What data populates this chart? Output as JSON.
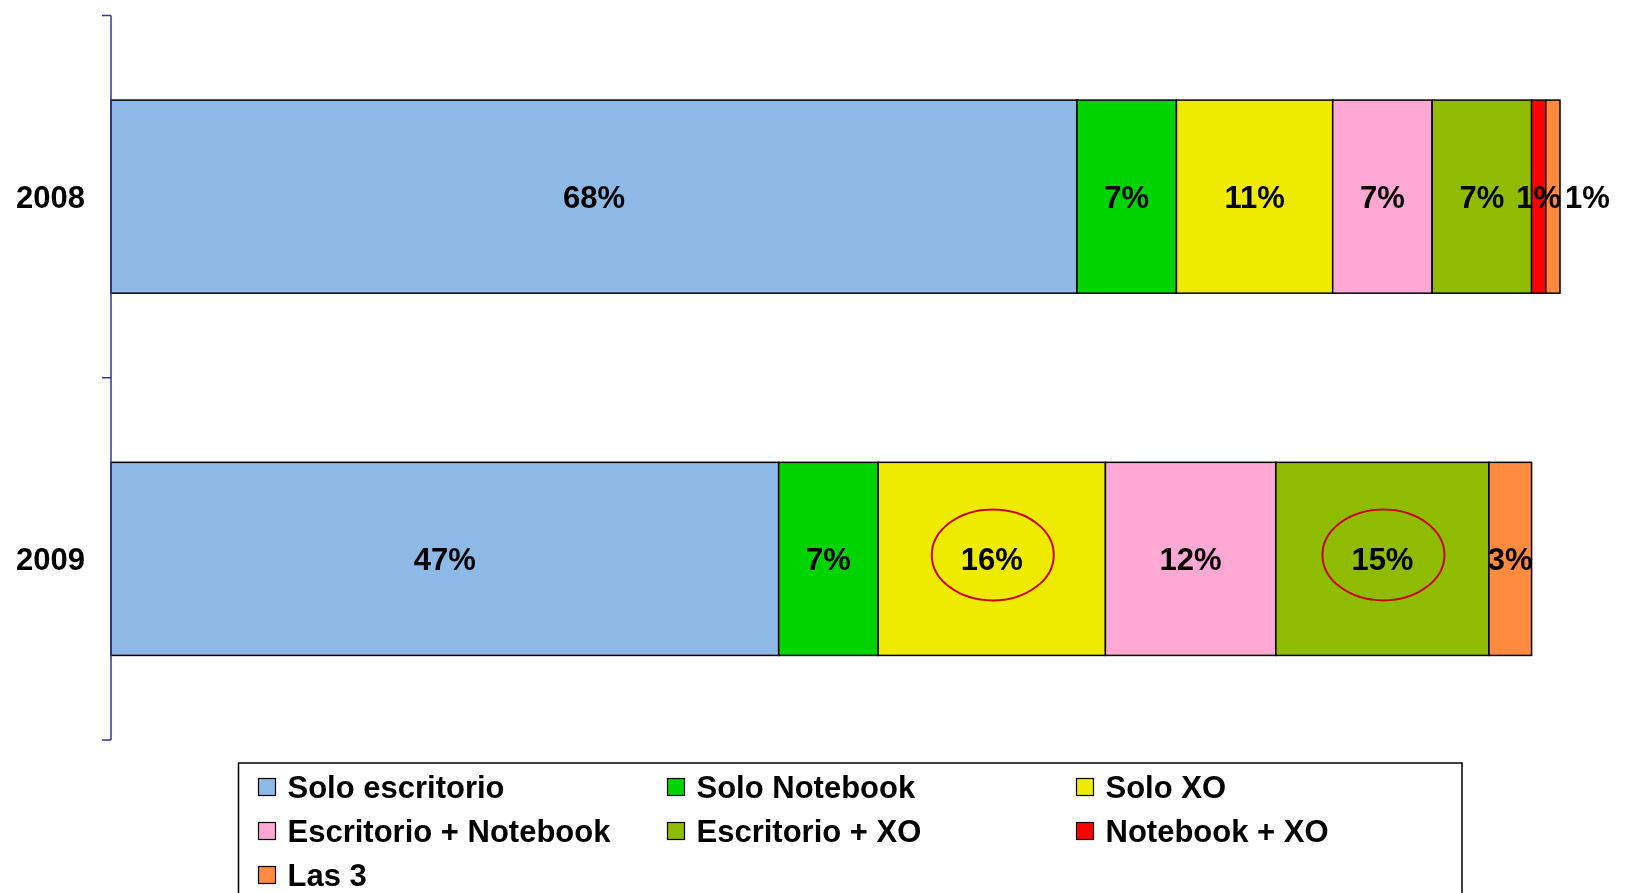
{
  "chart_data": {
    "type": "bar",
    "orientation": "horizontal",
    "stacked": true,
    "categories": [
      "2008",
      "2009"
    ],
    "xlim": [
      0,
      102
    ],
    "tick_labels": "y",
    "legend": "bottom",
    "series": [
      {
        "name": "Solo escritorio",
        "color": "#8cb9e6",
        "values": [
          68,
          47
        ],
        "value_labels": [
          "68%",
          "47%"
        ]
      },
      {
        "name": "Solo Notebook",
        "color": "#00d400",
        "values": [
          7,
          7
        ],
        "value_labels": [
          "7%",
          "7%"
        ]
      },
      {
        "name": "Solo XO",
        "color": "#eeeb00",
        "values": [
          11,
          16
        ],
        "value_labels": [
          "11%",
          "16%"
        ]
      },
      {
        "name": "Escritorio + Notebook",
        "color": "#ffa8d4",
        "values": [
          7,
          12
        ],
        "value_labels": [
          "7%",
          "12%"
        ]
      },
      {
        "name": "Escritorio + XO",
        "color": "#8fbb00",
        "values": [
          7,
          15
        ],
        "value_labels": [
          "7%",
          "15%"
        ]
      },
      {
        "name": "Notebook + XO",
        "color": "#ff0000",
        "values": [
          1,
          null
        ],
        "value_labels": [
          "1%",
          null
        ]
      },
      {
        "name": "Las 3",
        "color": "#ff8a40",
        "values": [
          1,
          3
        ],
        "value_labels": [
          "1%",
          "3%"
        ]
      }
    ]
  }
}
